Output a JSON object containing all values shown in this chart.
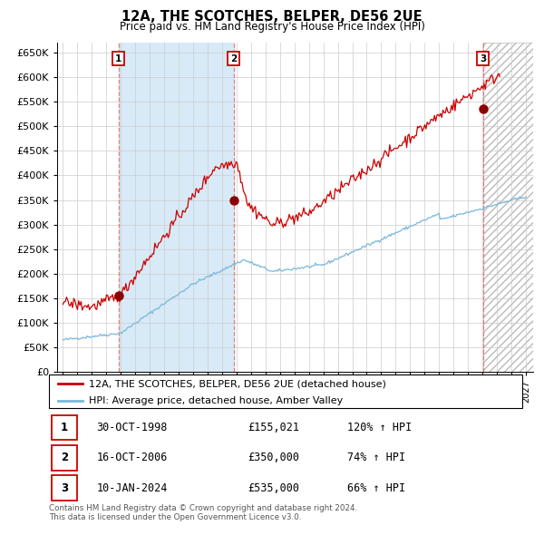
{
  "title": "12A, THE SCOTCHES, BELPER, DE56 2UE",
  "subtitle": "Price paid vs. HM Land Registry's House Price Index (HPI)",
  "ylim": [
    0,
    670000
  ],
  "yticks": [
    0,
    50000,
    100000,
    150000,
    200000,
    250000,
    300000,
    350000,
    400000,
    450000,
    500000,
    550000,
    600000,
    650000
  ],
  "xlim_start": 1994.6,
  "xlim_end": 2027.5,
  "xticks": [
    1995,
    1996,
    1997,
    1998,
    1999,
    2000,
    2001,
    2002,
    2003,
    2004,
    2005,
    2006,
    2007,
    2008,
    2009,
    2010,
    2011,
    2012,
    2013,
    2014,
    2015,
    2016,
    2017,
    2018,
    2019,
    2020,
    2021,
    2022,
    2023,
    2024,
    2025,
    2026,
    2027
  ],
  "hpi_color": "#7ab8d9",
  "price_color": "#cc0000",
  "marker_color": "#8b0000",
  "sale_dates": [
    1998.833,
    2006.789,
    2024.033
  ],
  "sale_prices": [
    155021,
    350000,
    535000
  ],
  "sale_labels": [
    "1",
    "2",
    "3"
  ],
  "vline_color": "#e87070",
  "shade_color": "#d8eaf7",
  "legend_entries": [
    "12A, THE SCOTCHES, BELPER, DE56 2UE (detached house)",
    "HPI: Average price, detached house, Amber Valley"
  ],
  "table_rows": [
    {
      "num": "1",
      "date": "30-OCT-1998",
      "price": "£155,021",
      "hpi": "120% ↑ HPI"
    },
    {
      "num": "2",
      "date": "16-OCT-2006",
      "price": "£350,000",
      "hpi": "74% ↑ HPI"
    },
    {
      "num": "3",
      "date": "10-JAN-2024",
      "price": "£535,000",
      "hpi": "66% ↑ HPI"
    }
  ],
  "footnote": "Contains HM Land Registry data © Crown copyright and database right 2024.\nThis data is licensed under the Open Government Licence v3.0.",
  "background_color": "#ffffff",
  "grid_color": "#cccccc"
}
